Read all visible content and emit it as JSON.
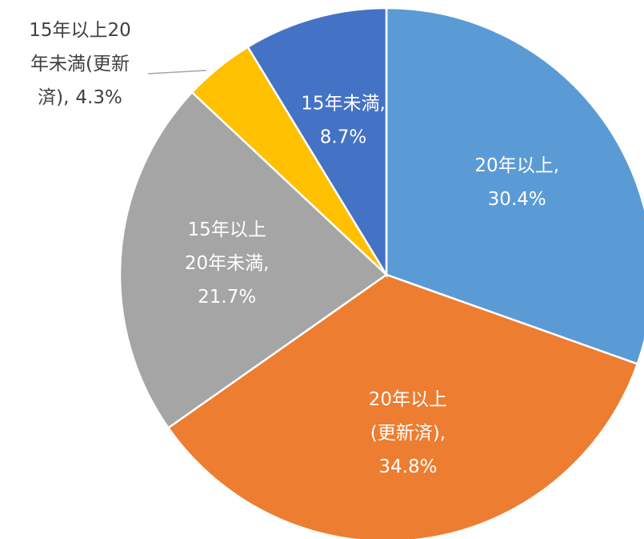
{
  "chart_data": {
    "type": "pie",
    "categories": [
      "20年以上,",
      "20年以上\n(更新済),",
      "15年以上\n20年未満,",
      "15年以上20\n年未満(更新\n済),",
      "15年未満,"
    ],
    "values": [
      30.4,
      34.8,
      21.7,
      4.3,
      8.7
    ],
    "value_labels": [
      "30.4%",
      "34.8%",
      "21.7%",
      "4.3%",
      "8.7%"
    ],
    "colors": [
      "#5b9bd5",
      "#ed7d31",
      "#a5a5a5",
      "#ffc000",
      "#4472c4"
    ]
  }
}
